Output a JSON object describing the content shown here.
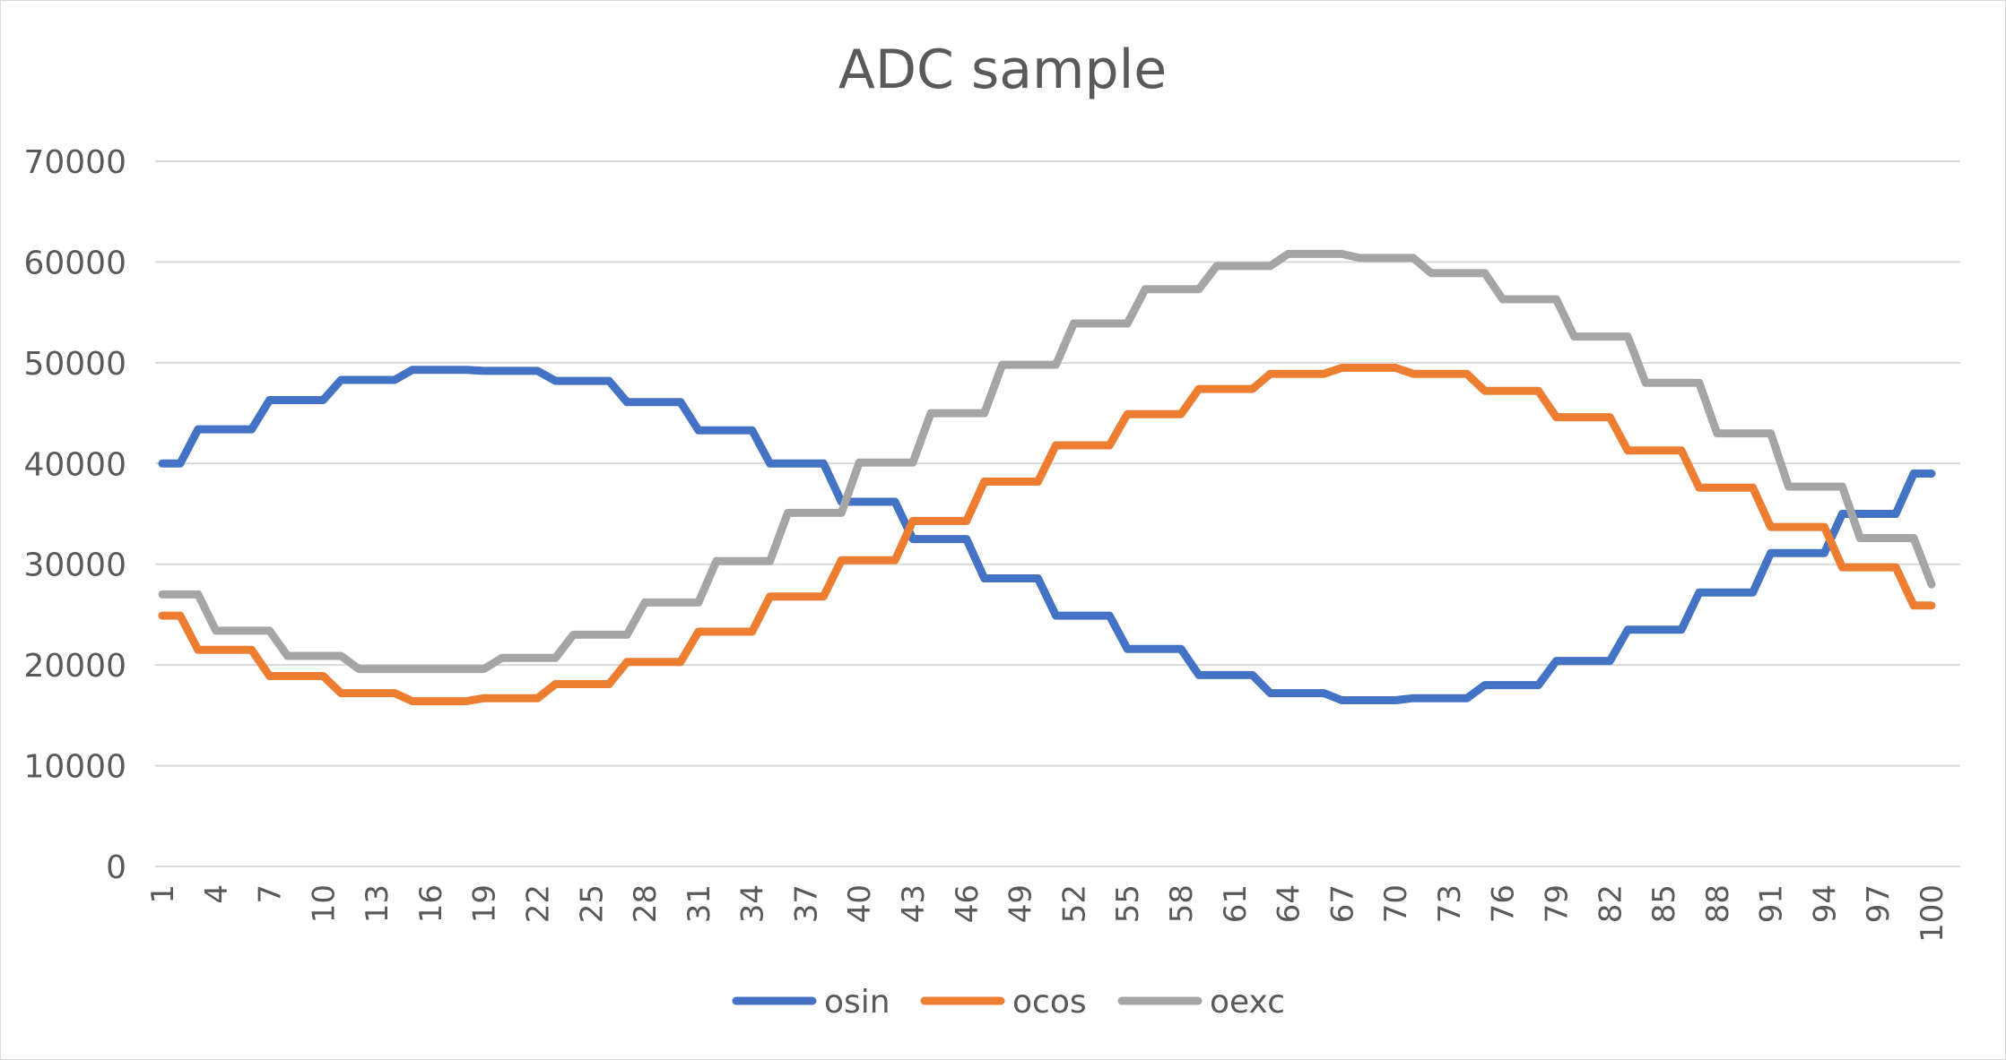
{
  "chart_data": {
    "type": "line",
    "title": "ADC sample",
    "xlabel": "",
    "ylabel": "",
    "x": [
      1,
      2,
      3,
      4,
      5,
      6,
      7,
      8,
      9,
      10,
      11,
      12,
      13,
      14,
      15,
      16,
      17,
      18,
      19,
      20,
      21,
      22,
      23,
      24,
      25,
      26,
      27,
      28,
      29,
      30,
      31,
      32,
      33,
      34,
      35,
      36,
      37,
      38,
      39,
      40,
      41,
      42,
      43,
      44,
      45,
      46,
      47,
      48,
      49,
      50,
      51,
      52,
      53,
      54,
      55,
      56,
      57,
      58,
      59,
      60,
      61,
      62,
      63,
      64,
      65,
      66,
      67,
      68,
      69,
      70,
      71,
      72,
      73,
      74,
      75,
      76,
      77,
      78,
      79,
      80,
      81,
      82,
      83,
      84,
      85,
      86,
      87,
      88,
      89,
      90,
      91,
      92,
      93,
      94,
      95,
      96,
      97,
      98,
      99,
      100
    ],
    "x_tick_labels": [
      "1",
      "4",
      "7",
      "10",
      "13",
      "16",
      "19",
      "22",
      "25",
      "28",
      "31",
      "34",
      "37",
      "40",
      "43",
      "46",
      "49",
      "52",
      "55",
      "58",
      "61",
      "64",
      "67",
      "70",
      "73",
      "76",
      "79",
      "82",
      "85",
      "88",
      "91",
      "94",
      "97",
      "100"
    ],
    "ylim": [
      0,
      70000
    ],
    "y_ticks": [
      0,
      10000,
      20000,
      30000,
      40000,
      50000,
      60000,
      70000
    ],
    "grid": true,
    "legend_position": "bottom",
    "series": [
      {
        "name": "osin",
        "color": "#4472C4",
        "values": [
          40000,
          40000,
          43400,
          43400,
          43400,
          43400,
          46300,
          46300,
          46300,
          46300,
          48300,
          48300,
          48300,
          48300,
          49300,
          49300,
          49300,
          49300,
          49200,
          49200,
          49200,
          49200,
          48200,
          48200,
          48200,
          48200,
          46100,
          46100,
          46100,
          46100,
          43300,
          43300,
          43300,
          43300,
          40000,
          40000,
          40000,
          40000,
          36200,
          36200,
          36200,
          36200,
          32500,
          32500,
          32500,
          32500,
          28600,
          28600,
          28600,
          28600,
          24900,
          24900,
          24900,
          24900,
          21600,
          21600,
          21600,
          21600,
          19000,
          19000,
          19000,
          19000,
          17200,
          17200,
          17200,
          17200,
          16500,
          16500,
          16500,
          16500,
          16700,
          16700,
          16700,
          16700,
          18000,
          18000,
          18000,
          18000,
          20400,
          20400,
          20400,
          20400,
          23500,
          23500,
          23500,
          23500,
          27200,
          27200,
          27200,
          27200,
          31100,
          31100,
          31100,
          31100,
          35000,
          35000,
          35000,
          35000,
          39000,
          39000
        ]
      },
      {
        "name": "ocos",
        "color": "#ED7D31",
        "values": [
          24900,
          24900,
          21500,
          21500,
          21500,
          21500,
          18900,
          18900,
          18900,
          18900,
          17200,
          17200,
          17200,
          17200,
          16400,
          16400,
          16400,
          16400,
          16700,
          16700,
          16700,
          16700,
          18100,
          18100,
          18100,
          18100,
          20300,
          20300,
          20300,
          20300,
          23300,
          23300,
          23300,
          23300,
          26800,
          26800,
          26800,
          26800,
          30400,
          30400,
          30400,
          30400,
          34300,
          34300,
          34300,
          34300,
          38200,
          38200,
          38200,
          38200,
          41800,
          41800,
          41800,
          41800,
          44900,
          44900,
          44900,
          44900,
          47400,
          47400,
          47400,
          47400,
          48900,
          48900,
          48900,
          48900,
          49500,
          49500,
          49500,
          49500,
          48900,
          48900,
          48900,
          48900,
          47200,
          47200,
          47200,
          47200,
          44600,
          44600,
          44600,
          44600,
          41300,
          41300,
          41300,
          41300,
          37600,
          37600,
          37600,
          37600,
          33700,
          33700,
          33700,
          33700,
          29700,
          29700,
          29700,
          29700,
          25900,
          25900
        ]
      },
      {
        "name": "oexc",
        "color": "#A5A5A5",
        "values": [
          27000,
          27000,
          27000,
          23400,
          23400,
          23400,
          23400,
          20900,
          20900,
          20900,
          20900,
          19600,
          19600,
          19600,
          19600,
          19600,
          19600,
          19600,
          19600,
          20700,
          20700,
          20700,
          20700,
          23000,
          23000,
          23000,
          23000,
          26200,
          26200,
          26200,
          26200,
          30300,
          30300,
          30300,
          30300,
          35100,
          35100,
          35100,
          35100,
          40100,
          40100,
          40100,
          40100,
          45000,
          45000,
          45000,
          45000,
          49800,
          49800,
          49800,
          49800,
          53900,
          53900,
          53900,
          53900,
          57300,
          57300,
          57300,
          57300,
          59600,
          59600,
          59600,
          59600,
          60800,
          60800,
          60800,
          60800,
          60400,
          60400,
          60400,
          60400,
          58900,
          58900,
          58900,
          58900,
          56300,
          56300,
          56300,
          56300,
          52600,
          52600,
          52600,
          52600,
          48000,
          48000,
          48000,
          48000,
          43000,
          43000,
          43000,
          43000,
          37700,
          37700,
          37700,
          37700,
          32600,
          32600,
          32600,
          32600,
          28000
        ]
      }
    ]
  }
}
